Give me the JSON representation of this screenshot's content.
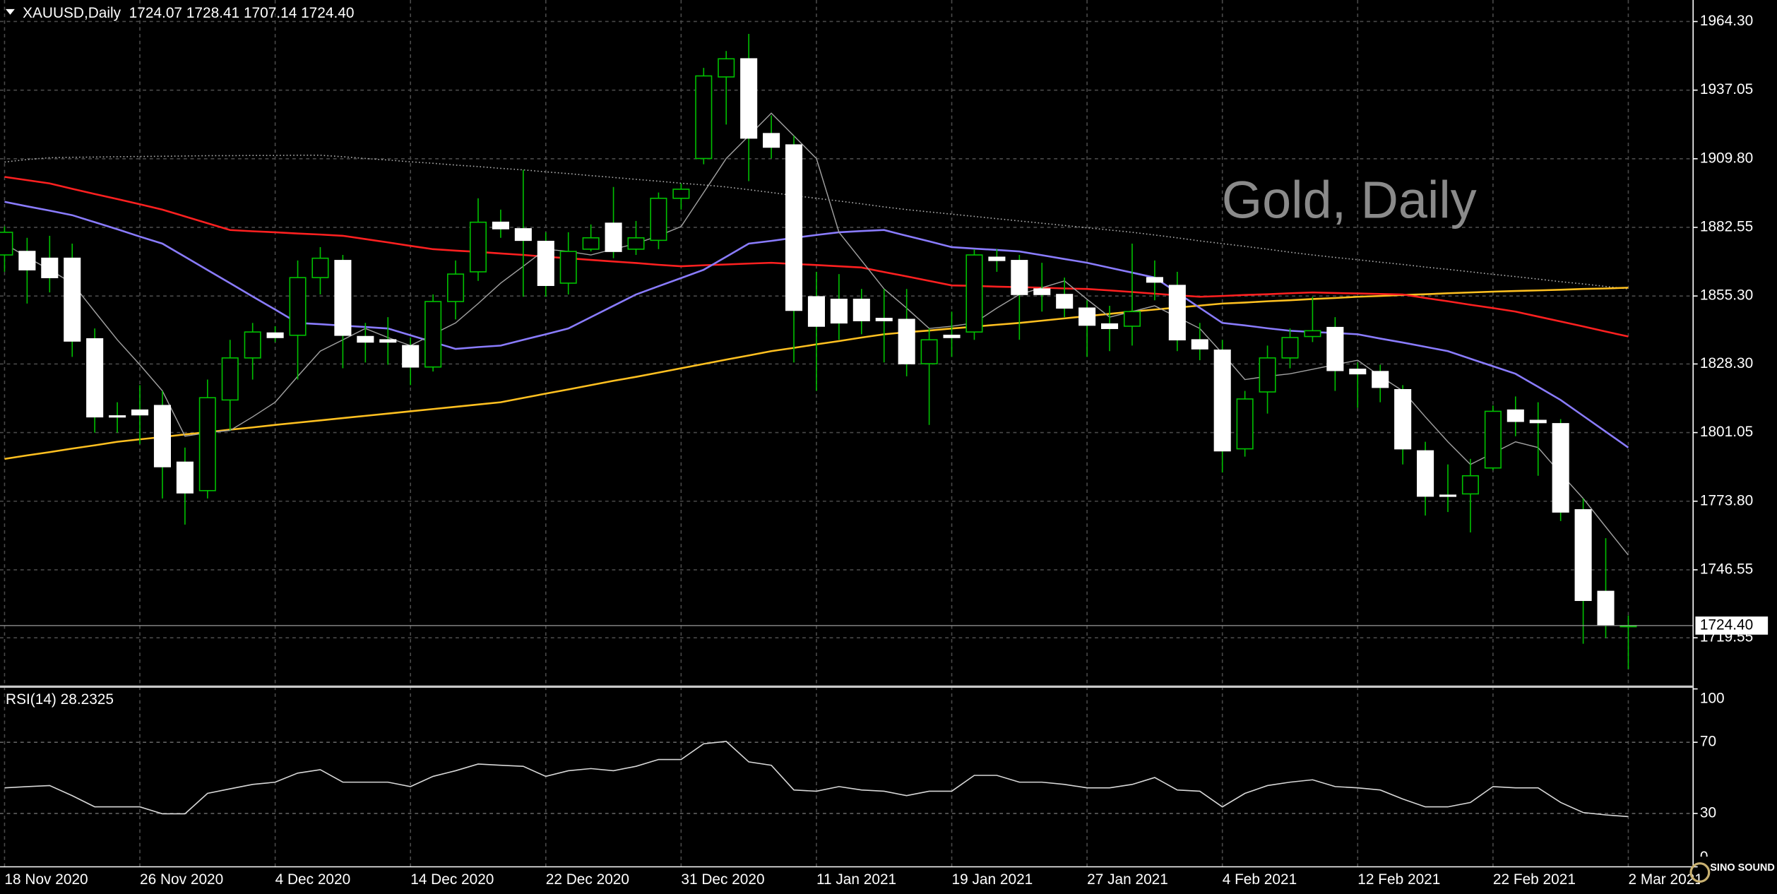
{
  "chart_data": [
    {
      "type": "candlestick",
      "header": "XAUUSD,Daily  1724.07 1728.41 1707.14 1724.40",
      "title": "Gold, Daily",
      "logo": "SINO SOUND",
      "categories": [
        "18 Nov 2020",
        null,
        null,
        null,
        null,
        null,
        "26 Nov 2020",
        null,
        null,
        null,
        null,
        null,
        "4 Dec 2020",
        null,
        null,
        null,
        null,
        null,
        "14 Dec 2020",
        null,
        null,
        null,
        null,
        null,
        "22 Dec 2020",
        null,
        null,
        null,
        null,
        null,
        "31 Dec 2020",
        null,
        null,
        null,
        null,
        null,
        "11 Jan 2021",
        null,
        null,
        null,
        null,
        null,
        "19 Jan 2021",
        null,
        null,
        null,
        null,
        null,
        "27 Jan 2021",
        null,
        null,
        null,
        null,
        null,
        "4 Feb 2021",
        null,
        null,
        null,
        null,
        null,
        "12 Feb 2021",
        null,
        null,
        null,
        null,
        null,
        "22 Feb 2021",
        null,
        null,
        null,
        null,
        null,
        "2 Mar 2021"
      ],
      "open": [
        1871.6,
        1873.0,
        1870.3,
        1870.3,
        1838.3,
        1807.7,
        1810.0,
        1811.8,
        1789.3,
        1778.0,
        1814.0,
        1830.7,
        1840.6,
        1839.7,
        1862.6,
        1869.4,
        1839.2,
        1837.9,
        1835.6,
        1827.1,
        1853.1,
        1864.9,
        1884.6,
        1882.0,
        1877.0,
        1860.4,
        1873.9,
        1884.2,
        1873.9,
        1877.4,
        1894.1,
        1909.9,
        1942.3,
        1949.5,
        1919.8,
        1915.3,
        1855.0,
        1854.0,
        1854.0,
        1846.4,
        1846.0,
        1828.4,
        1839.7,
        1841.0,
        1870.7,
        1869.4,
        1858.1,
        1855.9,
        1850.5,
        1844.2,
        1843.3,
        1862.6,
        1859.5,
        1837.9,
        1833.8,
        1794.6,
        1817.2,
        1830.7,
        1839.2,
        1842.8,
        1826.2,
        1825.3,
        1818.1,
        1793.8,
        1776.2,
        1776.7,
        1787.0,
        1810.0,
        1805.9,
        1804.6,
        1770.4,
        1738.0,
        1724.07
      ],
      "high": [
        1882.9,
        1878.4,
        1879.2,
        1876.1,
        1842.4,
        1813.1,
        1819.9,
        1817.6,
        1795.1,
        1822.1,
        1837.9,
        1844.6,
        1843.3,
        1869.4,
        1874.7,
        1871.6,
        1844.6,
        1846.9,
        1838.8,
        1855.9,
        1869.4,
        1894.1,
        1889.6,
        1905.4,
        1880.6,
        1880.6,
        1883.7,
        1898.6,
        1885.1,
        1896.4,
        1900.0,
        1945.9,
        1952.6,
        1959.4,
        1927.0,
        1918.9,
        1864.9,
        1864.0,
        1858.1,
        1858.1,
        1858.1,
        1842.4,
        1849.1,
        1873.9,
        1873.9,
        1871.6,
        1868.5,
        1862.6,
        1853.6,
        1851.4,
        1876.1,
        1869.4,
        1864.9,
        1844.6,
        1837.9,
        1817.6,
        1835.6,
        1842.4,
        1855.0,
        1846.9,
        1828.9,
        1828.0,
        1819.9,
        1797.4,
        1788.4,
        1790.6,
        1811.8,
        1815.4,
        1813.1,
        1806.4,
        1774.9,
        1759.1,
        1728.41
      ],
      "low": [
        1864.9,
        1852.3,
        1856.7,
        1831.1,
        1801.0,
        1801.0,
        1796.5,
        1774.9,
        1764.5,
        1774.9,
        1801.9,
        1822.1,
        1837.0,
        1822.1,
        1855.9,
        1826.6,
        1828.9,
        1828.0,
        1819.9,
        1825.3,
        1846.0,
        1861.3,
        1878.4,
        1855.0,
        1855.0,
        1855.9,
        1873.0,
        1870.3,
        1871.6,
        1873.9,
        1889.6,
        1907.6,
        1923.4,
        1900.9,
        1909.9,
        1828.9,
        1817.6,
        1837.9,
        1840.1,
        1828.9,
        1823.4,
        1804.1,
        1831.1,
        1837.9,
        1864.9,
        1837.9,
        1849.1,
        1846.9,
        1831.1,
        1833.4,
        1835.6,
        1853.6,
        1833.4,
        1829.8,
        1785.2,
        1791.5,
        1808.6,
        1826.6,
        1837.0,
        1817.6,
        1810.9,
        1813.1,
        1788.4,
        1768.1,
        1769.5,
        1761.4,
        1786.1,
        1799.6,
        1783.9,
        1765.9,
        1717.2,
        1719.5,
        1707.14
      ],
      "close": [
        1880.6,
        1865.7,
        1862.6,
        1837.4,
        1807.3,
        1807.3,
        1808.1,
        1787.5,
        1777.1,
        1814.9,
        1830.7,
        1841.0,
        1838.8,
        1862.6,
        1870.3,
        1839.7,
        1837.0,
        1837.0,
        1827.1,
        1853.1,
        1864.0,
        1884.6,
        1882.0,
        1877.4,
        1859.5,
        1873.0,
        1878.4,
        1873.0,
        1878.4,
        1894.1,
        1897.7,
        1942.7,
        1949.5,
        1918.0,
        1914.4,
        1849.6,
        1843.3,
        1844.6,
        1845.5,
        1845.5,
        1828.4,
        1837.9,
        1838.8,
        1871.6,
        1869.4,
        1855.9,
        1855.9,
        1850.5,
        1843.7,
        1842.4,
        1849.1,
        1860.8,
        1837.9,
        1834.3,
        1793.8,
        1814.4,
        1830.7,
        1838.8,
        1841.5,
        1825.7,
        1824.4,
        1819.0,
        1794.6,
        1775.8,
        1775.8,
        1783.9,
        1809.5,
        1805.5,
        1805.0,
        1769.5,
        1734.4,
        1724.5,
        1724.4
      ],
      "up_color": "#000000",
      "down_color": "#ffffff",
      "wick_color": "#00c000",
      "series": [
        {
          "color": "#b0b0b0",
          "style": "dotted",
          "values": [
            1908.5,
            1909.5,
            1910.2,
            1910.4,
            1910.5,
            1910.6,
            1910.7,
            1910.8,
            1910.9,
            1911.0,
            1911.0,
            1911.1,
            1911.1,
            1911.2,
            1911.2,
            1910.6,
            1909.9,
            1909.3,
            1908.6,
            1908.0,
            1907.3,
            1906.7,
            1906.0,
            1905.4,
            1904.6,
            1903.9,
            1903.1,
            1902.4,
            1901.6,
            1900.9,
            1900.1,
            1899.4,
            1898.6,
            1897.5,
            1896.4,
            1895.2,
            1894.1,
            1893.0,
            1891.9,
            1890.7,
            1889.6,
            1888.7,
            1887.8,
            1886.9,
            1886.0,
            1885.1,
            1884.2,
            1883.3,
            1882.4,
            1881.5,
            1880.6,
            1879.5,
            1878.4,
            1877.2,
            1876.1,
            1875.0,
            1873.9,
            1872.7,
            1871.6,
            1870.6,
            1869.7,
            1868.7,
            1867.8,
            1866.8,
            1865.9,
            1864.9,
            1863.9,
            1863.0,
            1862.0,
            1861.0,
            1860.1,
            1859.1,
            1858.1
          ]
        },
        {
          "color": "#ffc020",
          "style": "solid",
          "values": [
            1790.6,
            1792.0,
            1793.3,
            1794.7,
            1796.0,
            1797.4,
            1798.4,
            1799.3,
            1800.3,
            1801.2,
            1802.2,
            1803.1,
            1804.1,
            1805.0,
            1805.9,
            1806.8,
            1807.7,
            1808.6,
            1809.5,
            1810.4,
            1811.3,
            1812.2,
            1813.1,
            1814.8,
            1816.5,
            1818.2,
            1819.9,
            1821.6,
            1823.2,
            1824.9,
            1826.6,
            1828.3,
            1830.0,
            1831.7,
            1833.4,
            1834.7,
            1836.1,
            1837.4,
            1838.8,
            1840.1,
            1840.9,
            1841.6,
            1842.4,
            1843.1,
            1843.9,
            1844.6,
            1845.5,
            1846.4,
            1847.3,
            1848.2,
            1849.1,
            1849.9,
            1850.7,
            1851.5,
            1852.3,
            1852.7,
            1853.2,
            1853.6,
            1854.1,
            1854.5,
            1855.0,
            1855.3,
            1855.7,
            1856.0,
            1856.4,
            1856.7,
            1857.0,
            1857.3,
            1857.5,
            1857.8,
            1858.1,
            1858.3,
            1858.6
          ]
        },
        {
          "color": "#ff2020",
          "style": "solid",
          "values": [
            1902.6,
            1901.3,
            1900.0,
            1897.9,
            1895.8,
            1893.8,
            1891.7,
            1889.6,
            1886.9,
            1884.2,
            1881.5,
            1881.0,
            1880.6,
            1880.1,
            1879.7,
            1879.2,
            1877.9,
            1876.6,
            1875.2,
            1873.9,
            1873.3,
            1872.8,
            1872.2,
            1871.6,
            1870.9,
            1870.3,
            1869.6,
            1869.0,
            1868.4,
            1867.7,
            1867.1,
            1867.5,
            1867.8,
            1868.2,
            1868.5,
            1868.0,
            1867.6,
            1867.1,
            1866.6,
            1864.8,
            1863.1,
            1861.3,
            1859.5,
            1859.3,
            1859.0,
            1858.8,
            1858.6,
            1858.3,
            1858.1,
            1857.5,
            1856.9,
            1856.2,
            1855.6,
            1855.0,
            1855.3,
            1855.7,
            1856.0,
            1856.4,
            1856.7,
            1856.5,
            1856.3,
            1856.1,
            1855.9,
            1854.5,
            1853.2,
            1851.8,
            1850.5,
            1849.1,
            1847.1,
            1845.2,
            1843.2,
            1841.2,
            1839.2
          ]
        },
        {
          "color": "#8a7cff",
          "style": "solid",
          "values": [
            1892.7,
            1890.9,
            1889.2,
            1887.4,
            1884.6,
            1881.8,
            1878.9,
            1876.1,
            1870.9,
            1865.6,
            1860.4,
            1855.1,
            1849.9,
            1844.6,
            1844.1,
            1843.5,
            1843.0,
            1842.4,
            1839.7,
            1837.0,
            1834.3,
            1835.0,
            1835.6,
            1837.9,
            1840.1,
            1842.4,
            1846.9,
            1851.4,
            1855.9,
            1859.2,
            1862.4,
            1865.7,
            1870.9,
            1876.1,
            1877.2,
            1878.4,
            1879.5,
            1880.6,
            1881.1,
            1881.5,
            1879.2,
            1877.0,
            1874.7,
            1874.1,
            1873.6,
            1873.0,
            1871.5,
            1870.0,
            1868.5,
            1866.5,
            1864.6,
            1862.6,
            1856.6,
            1850.6,
            1844.6,
            1843.6,
            1842.5,
            1841.5,
            1841.0,
            1840.6,
            1840.1,
            1838.4,
            1836.8,
            1835.1,
            1833.4,
            1830.4,
            1827.4,
            1824.4,
            1819.2,
            1814.0,
            1807.7,
            1801.4,
            1795.1
          ]
        },
        {
          "color": "#a0a0a0",
          "style": "thin",
          "values": [
            1876.1,
            1870.7,
            1865.7,
            1860.4,
            1849.1,
            1837.9,
            1828.0,
            1817.6,
            1799.6,
            1801.0,
            1801.9,
            1807.3,
            1813.1,
            1823.4,
            1833.4,
            1837.9,
            1842.4,
            1838.8,
            1835.6,
            1840.1,
            1844.6,
            1852.3,
            1860.4,
            1867.1,
            1873.9,
            1873.0,
            1871.6,
            1873.9,
            1876.1,
            1879.2,
            1882.9,
            1896.4,
            1909.9,
            1918.9,
            1927.9,
            1918.9,
            1909.9,
            1880.6,
            1869.4,
            1858.1,
            1850.5,
            1842.4,
            1843.3,
            1844.6,
            1850.5,
            1855.9,
            1858.6,
            1861.3,
            1854.0,
            1846.9,
            1849.1,
            1851.4,
            1846.9,
            1842.4,
            1832.5,
            1822.1,
            1823.4,
            1824.4,
            1826.2,
            1828.0,
            1829.8,
            1823.4,
            1817.6,
            1807.3,
            1797.4,
            1788.4,
            1792.9,
            1797.4,
            1795.1,
            1784.8,
            1774.9,
            1763.6,
            1752.4
          ]
        }
      ],
      "last_price": {
        "value": 1724.4,
        "label": "1724.40"
      },
      "ylim": [
        1700.6,
        1972.85
      ],
      "yticks": [
        {
          "value": 1964.3,
          "label": "1964.30"
        },
        {
          "value": 1937.05,
          "label": "1937.05"
        },
        {
          "value": 1909.8,
          "label": "1909.80"
        },
        {
          "value": 1882.55,
          "label": "1882.55"
        },
        {
          "value": 1855.3,
          "label": "1855.30"
        },
        {
          "value": 1828.3,
          "label": "1828.30"
        },
        {
          "value": 1801.05,
          "label": "1801.05"
        },
        {
          "value": 1773.8,
          "label": "1773.80"
        },
        {
          "value": 1746.55,
          "label": "1746.55"
        },
        {
          "value": 1719.55,
          "label": "1719.55"
        }
      ],
      "grid": true
    },
    {
      "type": "line",
      "title": "RSI(14) 28.2325",
      "color": "#d8d8d8",
      "values": [
        44.4,
        45.1,
        45.7,
        40.0,
        33.7,
        33.7,
        33.7,
        29.8,
        29.8,
        41.3,
        43.8,
        46.3,
        47.6,
        52.7,
        54.6,
        47.6,
        47.6,
        47.6,
        45.1,
        50.8,
        54.0,
        57.8,
        57.1,
        56.5,
        50.8,
        54.0,
        55.2,
        54.0,
        56.5,
        60.3,
        60.3,
        69.2,
        70.5,
        59.0,
        57.1,
        43.2,
        42.5,
        45.1,
        43.2,
        42.5,
        40.0,
        42.5,
        42.5,
        51.4,
        51.4,
        47.6,
        47.6,
        46.3,
        44.4,
        44.4,
        46.3,
        50.2,
        43.2,
        42.5,
        33.7,
        41.3,
        45.7,
        47.6,
        48.9,
        45.1,
        44.4,
        43.2,
        38.1,
        33.7,
        33.7,
        36.2,
        45.1,
        44.4,
        44.4,
        36.2,
        30.5,
        29.2,
        28.2325
      ],
      "ylim": [
        0,
        100
      ],
      "yticks": [
        100,
        70,
        30,
        0
      ],
      "levels": [
        70,
        30
      ]
    }
  ]
}
